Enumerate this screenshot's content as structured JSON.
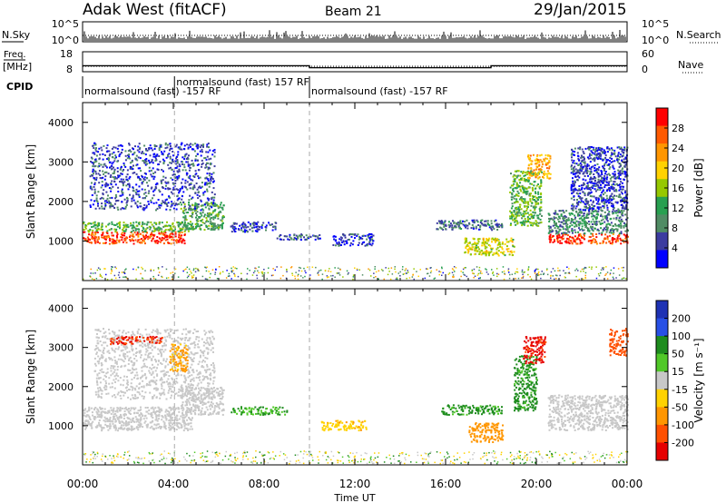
{
  "header": {
    "title": "Adak West (fitACF)",
    "beam": "Beam 21",
    "date": "29/Jan/2015"
  },
  "top_labels": {
    "nsky": "N.Sky",
    "freq_line1": "Freq.",
    "freq_line2": "[MHz]",
    "cpid": "CPID",
    "nsearch": "N.Search",
    "nave": "Nave"
  },
  "nsky_axis": {
    "top": "10^5",
    "bottom": "10^0"
  },
  "freq_axis": {
    "left_ticks": [
      "18",
      "8"
    ],
    "right_ticks": [
      "60",
      "0"
    ]
  },
  "cpid_segments": [
    {
      "label": "normalsound (fast) -157 RF",
      "start_hour": 0.0
    },
    {
      "label": "normalsound (fast) 157 RF",
      "start_hour": 4.05
    },
    {
      "label": "normalsound (fast) -157 RF",
      "start_hour": 10.0
    }
  ],
  "axes": {
    "x_tick_labels": [
      "00:00",
      "04:00",
      "08:00",
      "12:00",
      "16:00",
      "20:00",
      "00:00"
    ],
    "x_title": "Time UT",
    "y_tick_labels": [
      "1000",
      "2000",
      "3000",
      "4000"
    ],
    "y_title": "Slant Range [km]"
  },
  "power_colorbar": {
    "title": "Power [dB]",
    "tick_labels": [
      "28",
      "24",
      "20",
      "16",
      "12",
      "8",
      "4"
    ],
    "colors": [
      "#ff0000",
      "#ff5a00",
      "#ff9600",
      "#ffd200",
      "#96c800",
      "#28a050",
      "#508c64",
      "#3c3ca0",
      "#0000ff"
    ]
  },
  "velocity_colorbar": {
    "title": "Velocity [m s⁻¹]",
    "tick_labels": [
      "200",
      "100",
      "50",
      "15",
      "-15",
      "-50",
      "-100",
      "-200"
    ],
    "colors": [
      "#1e32b4",
      "#2850e6",
      "#1e8c1e",
      "#50c828",
      "#c8c8c8",
      "#ffd200",
      "#ff9600",
      "#ff5000",
      "#e60000"
    ]
  },
  "chart_data": {
    "type": "heatmap",
    "x_unit": "hours UT",
    "xlim": [
      0,
      24
    ],
    "ylim": [
      0,
      4500
    ],
    "frequency_mhz": [
      {
        "start_hour": 0,
        "end_hour": 10,
        "value": 11
      },
      {
        "start_hour": 10,
        "end_hour": 18,
        "value": 10
      },
      {
        "start_hour": 18,
        "end_hour": 24,
        "value": 11
      }
    ],
    "power_regions": [
      {
        "t": [
          0.0,
          4.6
        ],
        "r": [
          950,
          1250
        ],
        "db": 28
      },
      {
        "t": [
          0.0,
          4.8
        ],
        "r": [
          1250,
          1500
        ],
        "db": 14
      },
      {
        "t": [
          4.3,
          6.2
        ],
        "r": [
          1300,
          2000
        ],
        "db": 12
      },
      {
        "t": [
          0.3,
          5.8
        ],
        "r": [
          1800,
          3500
        ],
        "db": 6
      },
      {
        "t": [
          6.5,
          8.5
        ],
        "r": [
          1250,
          1500
        ],
        "db": 6
      },
      {
        "t": [
          8.5,
          10.5
        ],
        "r": [
          1050,
          1200
        ],
        "db": 6
      },
      {
        "t": [
          11.0,
          12.8
        ],
        "r": [
          900,
          1200
        ],
        "db": 6
      },
      {
        "t": [
          15.5,
          18.5
        ],
        "r": [
          1300,
          1550
        ],
        "db": 8
      },
      {
        "t": [
          16.8,
          19.0
        ],
        "r": [
          650,
          1100
        ],
        "db": 18
      },
      {
        "t": [
          18.8,
          20.2
        ],
        "r": [
          1400,
          2800
        ],
        "db": 14
      },
      {
        "t": [
          19.6,
          20.6
        ],
        "r": [
          2600,
          3200
        ],
        "db": 22
      },
      {
        "t": [
          20.5,
          24.0
        ],
        "r": [
          950,
          1200
        ],
        "db": 28
      },
      {
        "t": [
          20.5,
          24.0
        ],
        "r": [
          1200,
          1800
        ],
        "db": 10
      },
      {
        "t": [
          21.5,
          24.0
        ],
        "r": [
          1800,
          3400
        ],
        "db": 6
      }
    ],
    "velocity_regions": [
      {
        "t": [
          0.0,
          4.8
        ],
        "r": [
          900,
          1500
        ],
        "v": 0
      },
      {
        "t": [
          4.3,
          6.2
        ],
        "r": [
          1300,
          2000
        ],
        "v": 0
      },
      {
        "t": [
          0.5,
          5.8
        ],
        "r": [
          1700,
          3500
        ],
        "v": 0
      },
      {
        "t": [
          1.2,
          3.5
        ],
        "r": [
          3100,
          3300
        ],
        "v": -150
      },
      {
        "t": [
          3.8,
          4.6
        ],
        "r": [
          2400,
          3100
        ],
        "v": -60
      },
      {
        "t": [
          6.5,
          9.0
        ],
        "r": [
          1300,
          1500
        ],
        "v": 30
      },
      {
        "t": [
          10.5,
          12.5
        ],
        "r": [
          900,
          1150
        ],
        "v": -40
      },
      {
        "t": [
          15.8,
          18.5
        ],
        "r": [
          1300,
          1550
        ],
        "v": 40
      },
      {
        "t": [
          17.0,
          18.5
        ],
        "r": [
          600,
          1100
        ],
        "v": -70
      },
      {
        "t": [
          19.0,
          20.0
        ],
        "r": [
          1400,
          2800
        ],
        "v": 40
      },
      {
        "t": [
          19.4,
          20.4
        ],
        "r": [
          2600,
          3300
        ],
        "v": -160
      },
      {
        "t": [
          20.5,
          24.0
        ],
        "r": [
          900,
          1800
        ],
        "v": 0
      },
      {
        "t": [
          23.2,
          24.0
        ],
        "r": [
          2800,
          3500
        ],
        "v": -120
      }
    ]
  }
}
